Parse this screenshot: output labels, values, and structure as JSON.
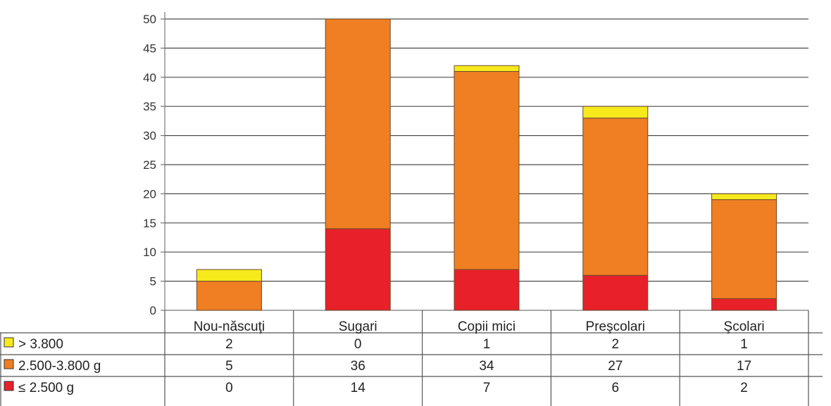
{
  "chart_data": {
    "type": "bar",
    "stacked": true,
    "categories": [
      "Nou-născuţi",
      "Sugari",
      "Copii mici",
      "Preşcolari",
      "Şcolari"
    ],
    "series": [
      {
        "name": "≤ 2.500 g",
        "color": "#e8202a",
        "values": [
          0,
          14,
          7,
          6,
          2
        ]
      },
      {
        "name": "2.500-3.800 g",
        "color": "#f07e22",
        "values": [
          5,
          36,
          34,
          27,
          17
        ]
      },
      {
        "name": "> 3.800",
        "color": "#f7ea1c",
        "values": [
          2,
          0,
          1,
          2,
          1
        ]
      }
    ],
    "ylim": [
      0,
      50
    ],
    "yticks": [
      0,
      5,
      10,
      15,
      20,
      25,
      30,
      35,
      40,
      45,
      50
    ],
    "grid": true,
    "data_table": true,
    "table_row_order": [
      "> 3.800",
      "2.500-3.800 g",
      "≤ 2.500 g"
    ]
  }
}
